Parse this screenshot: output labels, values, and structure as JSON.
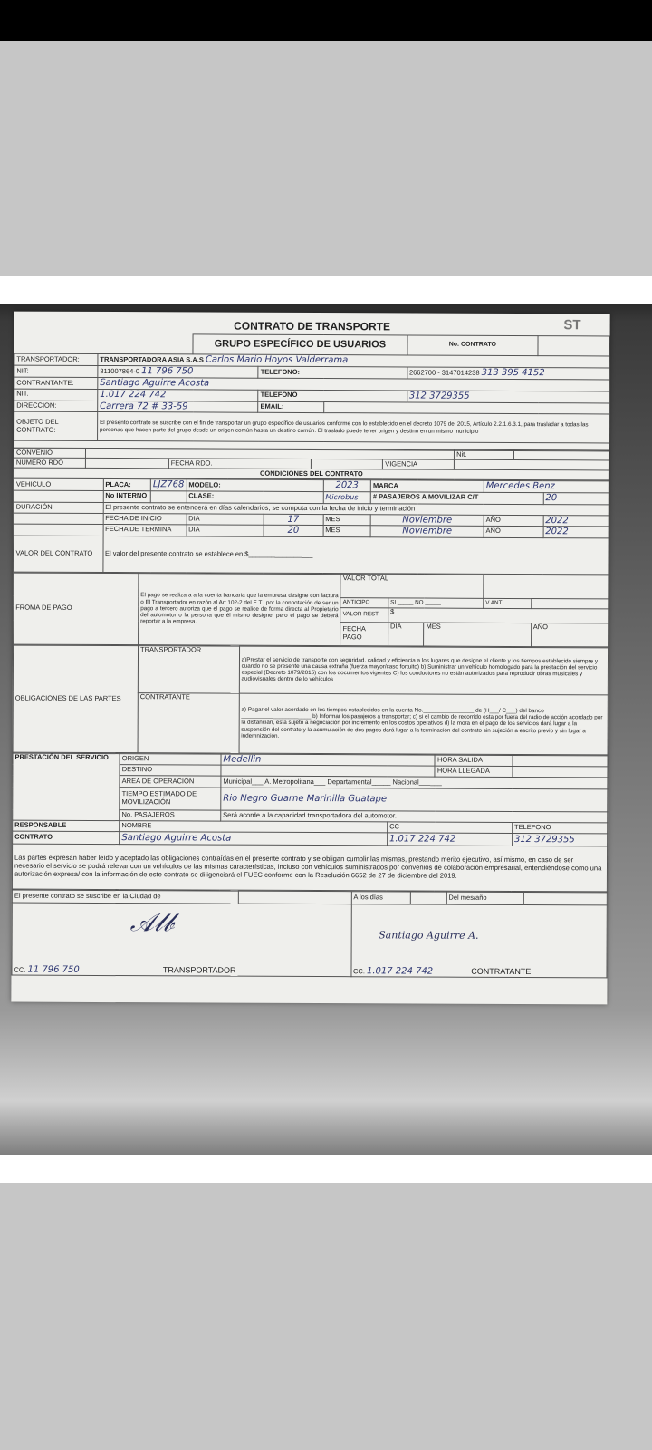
{
  "doc": {
    "title": "CONTRATO DE TRANSPORTE",
    "logo": "ST",
    "subtitle": "GRUPO ESPECÍFICO DE USUARIOS",
    "no_contrato": "No. CONTRATO",
    "transportador_label": "TRANSPORTADOR:",
    "transportador_value": "TRANSPORTADORA ASIA S.A.S",
    "transportador_hw": "Carlos Mario Hoyos Valderrama",
    "nit_label": "NIT:",
    "nit_value": "811007864-0",
    "nit_hw": "11 796 750",
    "telefono_label": "TELEFONO:",
    "telefono_value": "2662700 - 3147014238",
    "telefono_hw": "313 395 4152",
    "contratante_label": "CONTRANTANTE:",
    "contratante_hw": "Santiago Aguirre Acosta",
    "nit2_label": "NIT.",
    "nit2_hw": "1.017 224 742",
    "telefono2_label": "TELEFONO",
    "telefono2_hw": "312 3729355",
    "direccion_label": "DIRECCION:",
    "direccion_hw": "Carrera 72 # 33-59",
    "email_label": "EMAIL:",
    "objeto_label": "OBJETO DEL CONTRATO:",
    "objeto_text": "El presento contrato se suscribe con el fin de transportar un grupo específico de usuarios conforme con lo establecido en el decreto 1079 del 2015, Artículo 2.2.1.6.3.1, para trasladar a todas las personas que hacen parte del grupo desde un origen común hasta un destino común. El traslado puede tener origen y destino en un mismo municipio",
    "convenio_label": "CONVENIO",
    "nit3_label": "Nit.",
    "numero_rdo_label": "NUMERO RDO",
    "fecha_rdo_label": "FECHA RDO.",
    "vigencia_label": "VIGENCIA",
    "condiciones_label": "CONDICIONES DEL CONTRATO",
    "vehiculo_label": "VEHICULO",
    "placa_label": "PLACA:",
    "placa_hw": "LJZ768",
    "modelo_label": "MODELO:",
    "modelo_hw": "2023",
    "marca_label": "MARCA",
    "marca_hw": "Mercedes Benz",
    "no_interno_label": "No INTERNO",
    "clase_label": "CLASE:",
    "clase_hw": "Microbus",
    "pasajeros_label": "# PASAJEROS A MOVILIZAR C/T",
    "pasajeros_hw": "20",
    "duracion_label": "DURACIÓN",
    "duracion_text": "El presente contrato se entenderá en días calendarios, se computa con la fecha de inicio y terminación",
    "fecha_inicio_label": "FECHA DE INICIO",
    "fecha_termina_label": "FECHA DE TERMINA",
    "dia_label": "DIA",
    "mes_label": "MES",
    "ano_label": "AÑO",
    "inicio_dia": "17",
    "inicio_mes": "Noviembre",
    "inicio_ano": "2022",
    "termina_dia": "20",
    "termina_mes": "Noviembre",
    "termina_ano": "2022",
    "valor_label": "VALOR DEL CONTRATO",
    "valor_text": "El valor del presente contrato se establece en $_________________.",
    "forma_pago_label": "FROMA DE PAGO",
    "forma_pago_text": "El pago se realizara a la cuenta bancaria que la empresa designe con factura o El Transportador en razón al Art 102-2 del E.T., por la connotación de ser un pago a tercero autoriza que el pago se realice de forma directa al Propietario del automotor o la persona que él mismo designe, pero el pago se deberá reportar a la empresa.",
    "valor_total_label": "VALOR TOTAL",
    "anticipo_label": "ANTICIPO",
    "si_no_label": "SI _____ NO _____",
    "v_ant_label": "V ANT",
    "valor_rest_label": "VALOR REST",
    "valor_rest_symbol": "$",
    "fecha_pago_label": "FECHA PAGO",
    "obligaciones_label": "OBLIGACIONES DE LAS PARTES",
    "ob_transportador_label": "TRANSPORTADOR",
    "ob_transportador_text": "a)Prestar el servicio de transporte con seguridad, calidad y eficiencia a los lugares que designe el cliente y los tiempos establecido siempre y cuando no se presente una causa extraña (fuerza mayor/caso fortuito) b) Suministrar un vehículo homologado para la prestación del servicio especial (Decreto 1079/2015) con los documentos vigentes C) los conductores no están autorizados para reproducir obras musicales y audiovisuales dentro de lo vehículos",
    "ob_contratante_label": "CONTRATANTE",
    "ob_contratante_text": "a) Pagar el valor acordado en los tiempos establecidos en la cuenta No.________________ de (H___/ C___) del banco ______________________ b) Informar los pasajeros a transportar; c) si el cambio de recorrido esta por fuera del radio de acción acordado por la distancian, esta sujeto a negociación por incremento en los costos operativos d) la mora en el pago de los servicios dará lugar a la suspensión del contrato y la acumulación de dos pagos dará lugar a la terminación del contrato sin sujeción a escrito previo y sin lugar a indemnización.",
    "prestacion_label": "PRESTACIÓN DEL SERVICIO",
    "origen_label": "ORIGEN",
    "origen_hw": "Medellin",
    "hora_salida_label": "HORA SALIDA",
    "destino_label": "DESTINO",
    "hora_llegada_label": "HORA LLEGADA",
    "area_label": "AREA DE OPERACION",
    "area_text": "Municipal___ A. Metropolitana___ Departamental_____ Nacional______",
    "tiempo_label": "TIEMPO ESTIMADO DE MOVILIZACIÓN",
    "tiempo_hw": "Rio Negro Guarne Marinilla Guatape",
    "no_pasajeros_label": "No. PASAJEROS",
    "no_pasajeros_text": "Será acorde a la capacidad transportadora del automotor.",
    "responsable_label": "RESPONSABLE",
    "contrato_label": "CONTRATO",
    "nombre_label": "NOMBRE",
    "cc_label": "CC",
    "telefono3_label": "TELEFONO",
    "resp_nombre_hw": "Santiago Aguirre Acosta",
    "resp_cc_hw": "1.017 224 742",
    "resp_tel_hw": "312 3729355",
    "paragraph": "Las partes expresan haber leído y aceptado las obligaciones contraídas en el presente contrato y se obligan cumplir las mismas, prestando merito ejecutivo, así mismo, en caso de ser necesario el servicio se podrá relevar con un vehículos de las mismas características, incluso con vehículos suministrados por convenios de colaboración empresarial, entendiéndose como una autorización expresa/ con la información de este contrato se diligenciará el FUEC conforme con la Resolución 6652 de 27 de diciembre del 2019.",
    "ciudad_label": "El presente contrato se suscribe en la Ciudad de",
    "a_los_dias_label": "A los días",
    "del_mes_label": "Del mes/año",
    "cc_trans_label": "CC.",
    "cc_trans_hw": "11 796 750",
    "transportador_sig_label": "TRANSPORTADOR",
    "cc_contr_label": "CC.",
    "cc_contr_hw": "1.017 224 742",
    "contratante_sig_label": "CONTRATANTE",
    "contratante_sig_hw": "Santiago Aguirre A."
  }
}
